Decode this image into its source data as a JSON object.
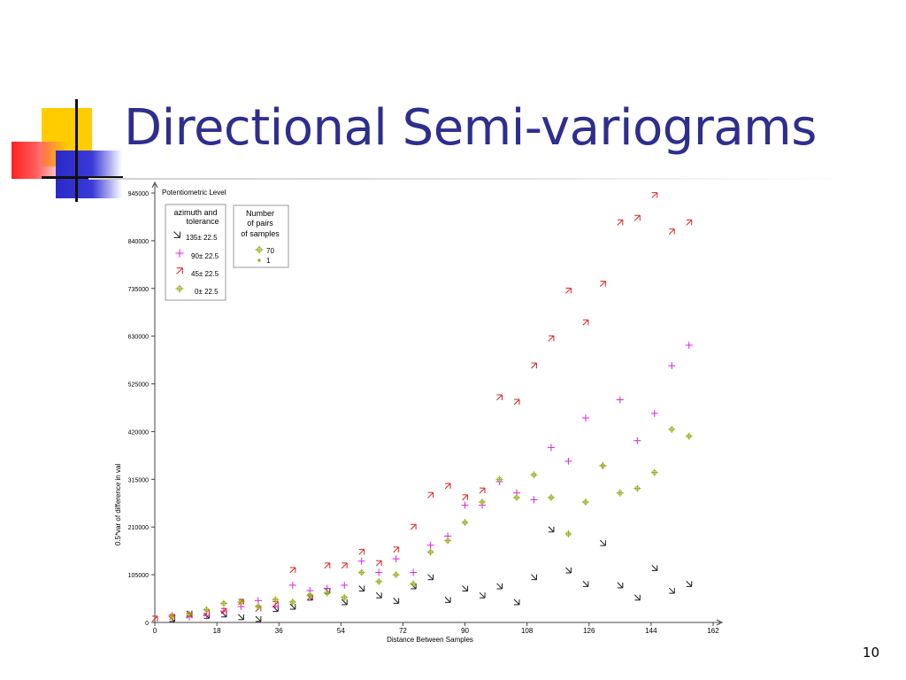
{
  "slide": {
    "title": "Directional Semi-variograms",
    "page_number": "10"
  },
  "colors": {
    "title": "#2e2e8f",
    "deco_yellow": "#ffcc00",
    "deco_red": "#ff2020",
    "deco_blue": "#2a2ac8"
  },
  "chart_data": {
    "type": "scatter",
    "title": "Potentiometric Level",
    "xlabel": "Distance Between Samples",
    "ylabel": "0.5*var of difference in val",
    "xlim": [
      0,
      162
    ],
    "ylim": [
      0,
      945000
    ],
    "x_ticks": [
      "0",
      "18",
      "36",
      "54",
      "72",
      "90",
      "108",
      "126",
      "144",
      "162"
    ],
    "y_ticks": [
      "0",
      "105000",
      "210000",
      "315000",
      "420000",
      "525000",
      "630000",
      "735000",
      "840000",
      "945000"
    ],
    "legend_azimuth": {
      "title_line1": "azimuth and",
      "title_line2": "tolerance",
      "entries": [
        "135± 22.5",
        "90± 22.5",
        "45± 22.5",
        "0± 22.5"
      ]
    },
    "legend_pairs": {
      "title_line1": "Number",
      "title_line2": "of pairs",
      "title_line3": "of samples",
      "entries": [
        "70",
        "1"
      ]
    },
    "series": [
      {
        "name": "135± 22.5",
        "color": "#1a1a1a",
        "marker": "arrow-down-right",
        "points": [
          [
            5,
            8000
          ],
          [
            10,
            20000
          ],
          [
            15,
            15000
          ],
          [
            20,
            18000
          ],
          [
            25,
            12000
          ],
          [
            30,
            8000
          ],
          [
            35,
            30000
          ],
          [
            40,
            35000
          ],
          [
            45,
            55000
          ],
          [
            50,
            70000
          ],
          [
            55,
            45000
          ],
          [
            60,
            75000
          ],
          [
            65,
            60000
          ],
          [
            70,
            48000
          ],
          [
            75,
            80000
          ],
          [
            80,
            100000
          ],
          [
            85,
            50000
          ],
          [
            90,
            75000
          ],
          [
            95,
            60000
          ],
          [
            100,
            80000
          ],
          [
            105,
            45000
          ],
          [
            110,
            100000
          ],
          [
            115,
            205000
          ],
          [
            120,
            115000
          ],
          [
            125,
            85000
          ],
          [
            130,
            175000
          ],
          [
            135,
            82000
          ],
          [
            140,
            55000
          ],
          [
            145,
            120000
          ],
          [
            150,
            70000
          ],
          [
            155,
            85000
          ]
        ]
      },
      {
        "name": "90± 22.5",
        "color": "#dd22dd",
        "marker": "plus",
        "points": [
          [
            5,
            15000
          ],
          [
            10,
            12000
          ],
          [
            15,
            15000
          ],
          [
            20,
            25000
          ],
          [
            25,
            35000
          ],
          [
            30,
            48000
          ],
          [
            35,
            35000
          ],
          [
            40,
            82000
          ],
          [
            45,
            70000
          ],
          [
            50,
            75000
          ],
          [
            55,
            82000
          ],
          [
            60,
            135000
          ],
          [
            65,
            110000
          ],
          [
            70,
            140000
          ],
          [
            75,
            110000
          ],
          [
            80,
            170000
          ],
          [
            85,
            190000
          ],
          [
            90,
            258000
          ],
          [
            95,
            258000
          ],
          [
            100,
            310000
          ],
          [
            105,
            285000
          ],
          [
            110,
            270000
          ],
          [
            115,
            385000
          ],
          [
            120,
            355000
          ],
          [
            125,
            450000
          ],
          [
            130,
            345000
          ],
          [
            135,
            490000
          ],
          [
            140,
            400000
          ],
          [
            145,
            460000
          ],
          [
            150,
            565000
          ],
          [
            155,
            610000
          ]
        ]
      },
      {
        "name": "45± 22.5",
        "color": "#dd2222",
        "marker": "arrow-up-right",
        "points": [
          [
            0,
            8000
          ],
          [
            5,
            12000
          ],
          [
            10,
            15000
          ],
          [
            15,
            22000
          ],
          [
            20,
            25000
          ],
          [
            25,
            45000
          ],
          [
            30,
            30000
          ],
          [
            35,
            40000
          ],
          [
            40,
            115000
          ],
          [
            45,
            55000
          ],
          [
            50,
            125000
          ],
          [
            55,
            125000
          ],
          [
            60,
            155000
          ],
          [
            65,
            130000
          ],
          [
            70,
            160000
          ],
          [
            75,
            210000
          ],
          [
            80,
            280000
          ],
          [
            85,
            300000
          ],
          [
            90,
            275000
          ],
          [
            95,
            290000
          ],
          [
            100,
            495000
          ],
          [
            105,
            485000
          ],
          [
            110,
            565000
          ],
          [
            115,
            625000
          ],
          [
            120,
            730000
          ],
          [
            125,
            660000
          ],
          [
            130,
            745000
          ],
          [
            135,
            880000
          ],
          [
            140,
            890000
          ],
          [
            145,
            940000
          ],
          [
            150,
            860000
          ],
          [
            155,
            880000
          ]
        ]
      },
      {
        "name": "0± 22.5",
        "color": "#9aaa1a",
        "marker": "plus-circle",
        "points": [
          [
            5,
            12000
          ],
          [
            10,
            18000
          ],
          [
            15,
            28000
          ],
          [
            20,
            42000
          ],
          [
            25,
            45000
          ],
          [
            30,
            35000
          ],
          [
            35,
            50000
          ],
          [
            40,
            45000
          ],
          [
            45,
            60000
          ],
          [
            50,
            65000
          ],
          [
            55,
            55000
          ],
          [
            60,
            110000
          ],
          [
            65,
            90000
          ],
          [
            70,
            105000
          ],
          [
            75,
            85000
          ],
          [
            80,
            155000
          ],
          [
            85,
            180000
          ],
          [
            90,
            220000
          ],
          [
            95,
            265000
          ],
          [
            100,
            315000
          ],
          [
            105,
            275000
          ],
          [
            110,
            325000
          ],
          [
            115,
            275000
          ],
          [
            120,
            195000
          ],
          [
            125,
            265000
          ],
          [
            130,
            345000
          ],
          [
            135,
            285000
          ],
          [
            140,
            295000
          ],
          [
            145,
            330000
          ],
          [
            150,
            425000
          ],
          [
            155,
            410000
          ]
        ]
      }
    ]
  }
}
